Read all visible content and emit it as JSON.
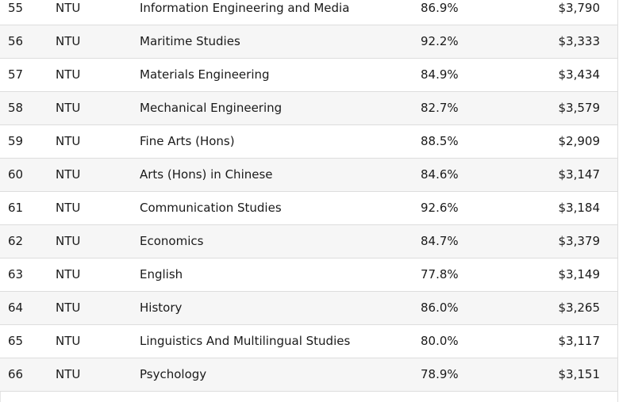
{
  "rows": [
    {
      "no": "55",
      "uni": "NTU",
      "course": "Information Engineering and Media",
      "rate": "86.9%",
      "salary": "$3,790"
    },
    {
      "no": "56",
      "uni": "NTU",
      "course": "Maritime Studies",
      "rate": "92.2%",
      "salary": "$3,333"
    },
    {
      "no": "57",
      "uni": "NTU",
      "course": "Materials Engineering",
      "rate": "84.9%",
      "salary": "$3,434"
    },
    {
      "no": "58",
      "uni": "NTU",
      "course": "Mechanical Engineering",
      "rate": "82.7%",
      "salary": "$3,579"
    },
    {
      "no": "59",
      "uni": "NTU",
      "course": "Fine Arts (Hons)",
      "rate": "88.5%",
      "salary": "$2,909"
    },
    {
      "no": "60",
      "uni": "NTU",
      "course": "Arts (Hons) in Chinese",
      "rate": "84.6%",
      "salary": "$3,147"
    },
    {
      "no": "61",
      "uni": "NTU",
      "course": "Communication Studies",
      "rate": "92.6%",
      "salary": "$3,184"
    },
    {
      "no": "62",
      "uni": "NTU",
      "course": "Economics",
      "rate": "84.7%",
      "salary": "$3,379"
    },
    {
      "no": "63",
      "uni": "NTU",
      "course": "English",
      "rate": "77.8%",
      "salary": "$3,149"
    },
    {
      "no": "64",
      "uni": "NTU",
      "course": "History",
      "rate": "86.0%",
      "salary": "$3,265"
    },
    {
      "no": "65",
      "uni": "NTU",
      "course": "Linguistics And Multilingual Studies",
      "rate": "80.0%",
      "salary": "$3,117"
    },
    {
      "no": "66",
      "uni": "NTU",
      "course": "Psychology",
      "rate": "78.9%",
      "salary": "$3,151"
    }
  ]
}
